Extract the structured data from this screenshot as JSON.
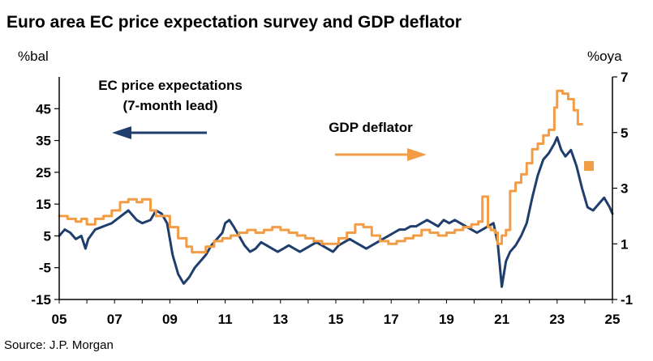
{
  "chart_data": {
    "type": "line",
    "title": "Euro area EC price expectation survey and GDP deflator",
    "left_axis_unit": "%bal",
    "right_axis_unit": "%oya",
    "ylim_left": [
      -15,
      55
    ],
    "ylim_right": [
      -1,
      7
    ],
    "yticks_left": [
      45,
      35,
      25,
      15,
      5,
      -5,
      -15
    ],
    "yticks_right": [
      7,
      5,
      3,
      1,
      -1
    ],
    "xlim": [
      2005,
      2025
    ],
    "xticks": [
      "05",
      "07",
      "09",
      "11",
      "13",
      "15",
      "17",
      "19",
      "21",
      "23",
      "25"
    ],
    "colors": {
      "ec": "#1f3e6e",
      "gdp": "#f39c46"
    },
    "annotations": {
      "ec_label_line1": "EC price expectations",
      "ec_label_line2": "(7-month lead)",
      "gdp_label": "GDP deflator"
    },
    "source": "Source: J.P. Morgan",
    "series": [
      {
        "name": "EC price expectations",
        "axis": "left",
        "x": [
          2005.0,
          2005.2,
          2005.4,
          2005.6,
          2005.8,
          2005.95,
          2006.05,
          2006.3,
          2006.6,
          2006.9,
          2007.2,
          2007.5,
          2007.8,
          2008.0,
          2008.3,
          2008.5,
          2008.7,
          2008.9,
          2009.1,
          2009.3,
          2009.5,
          2009.7,
          2009.9,
          2010.1,
          2010.3,
          2010.5,
          2010.7,
          2010.9,
          2011.0,
          2011.15,
          2011.3,
          2011.5,
          2011.7,
          2011.9,
          2012.1,
          2012.3,
          2012.5,
          2012.7,
          2012.9,
          2013.1,
          2013.3,
          2013.5,
          2013.7,
          2013.9,
          2014.1,
          2014.3,
          2014.5,
          2014.7,
          2014.9,
          2015.1,
          2015.3,
          2015.5,
          2015.7,
          2015.9,
          2016.1,
          2016.3,
          2016.5,
          2016.7,
          2016.9,
          2017.1,
          2017.3,
          2017.5,
          2017.7,
          2017.9,
          2018.1,
          2018.3,
          2018.5,
          2018.7,
          2018.9,
          2019.1,
          2019.3,
          2019.5,
          2019.7,
          2019.9,
          2020.1,
          2020.3,
          2020.5,
          2020.7,
          2020.85,
          2021.0,
          2021.15,
          2021.3,
          2021.5,
          2021.7,
          2021.9,
          2022.1,
          2022.3,
          2022.5,
          2022.7,
          2022.9,
          2023.0,
          2023.15,
          2023.3,
          2023.5,
          2023.7,
          2023.9,
          2024.1,
          2024.3,
          2024.5,
          2024.7,
          2024.9,
          2025.0
        ],
        "values": [
          5,
          7,
          6,
          4,
          5,
          1,
          4,
          7,
          8,
          9,
          11,
          13,
          10,
          9,
          10,
          13,
          12,
          9,
          -1,
          -7,
          -10,
          -8,
          -5,
          -3,
          -1,
          2,
          4,
          6,
          9,
          10,
          8,
          5,
          2,
          0,
          1,
          3,
          2,
          1,
          0,
          1,
          2,
          1,
          0,
          1,
          2,
          3,
          2,
          1,
          0,
          2,
          3,
          4,
          3,
          2,
          1,
          2,
          3,
          4,
          5,
          6,
          7,
          7,
          8,
          8,
          9,
          10,
          9,
          8,
          10,
          9,
          10,
          9,
          8,
          7,
          6,
          7,
          8,
          9,
          3,
          -11,
          -3,
          0,
          2,
          5,
          9,
          17,
          24,
          29,
          31,
          34,
          36,
          32,
          30,
          32,
          27,
          20,
          14,
          13,
          15,
          17,
          14,
          12
        ]
      },
      {
        "name": "GDP deflator",
        "axis": "right",
        "x": [
          2005.0,
          2005.3,
          2005.6,
          2005.8,
          2006.0,
          2006.3,
          2006.6,
          2006.9,
          2007.2,
          2007.5,
          2007.8,
          2008.0,
          2008.3,
          2008.5,
          2008.75,
          2009.0,
          2009.3,
          2009.6,
          2009.8,
          2010.0,
          2010.3,
          2010.6,
          2010.9,
          2011.2,
          2011.5,
          2011.8,
          2012.1,
          2012.4,
          2012.7,
          2013.0,
          2013.3,
          2013.6,
          2013.9,
          2014.2,
          2014.5,
          2014.8,
          2015.1,
          2015.4,
          2015.7,
          2016.0,
          2016.3,
          2016.6,
          2016.9,
          2017.2,
          2017.5,
          2017.8,
          2018.1,
          2018.4,
          2018.7,
          2019.0,
          2019.3,
          2019.6,
          2019.9,
          2020.15,
          2020.3,
          2020.5,
          2020.6,
          2020.75,
          2020.85,
          2021.0,
          2021.15,
          2021.3,
          2021.5,
          2021.7,
          2021.9,
          2022.1,
          2022.3,
          2022.5,
          2022.7,
          2022.9,
          2023.0,
          2023.2,
          2023.4,
          2023.6,
          2023.75,
          2023.9
        ],
        "values": [
          2.0,
          1.9,
          1.8,
          1.9,
          1.7,
          1.9,
          2.0,
          2.2,
          2.5,
          2.6,
          2.5,
          2.6,
          2.2,
          2.0,
          2.0,
          1.6,
          1.2,
          0.9,
          0.7,
          0.7,
          0.9,
          1.1,
          1.2,
          1.3,
          1.4,
          1.5,
          1.4,
          1.5,
          1.6,
          1.5,
          1.4,
          1.3,
          1.2,
          1.1,
          1.0,
          1.0,
          1.2,
          1.4,
          1.7,
          1.6,
          1.3,
          1.1,
          1.0,
          1.1,
          1.2,
          1.3,
          1.5,
          1.4,
          1.3,
          1.4,
          1.5,
          1.6,
          1.7,
          1.8,
          2.7,
          1.6,
          1.5,
          1.4,
          1.0,
          1.3,
          1.5,
          2.9,
          3.2,
          3.5,
          3.9,
          4.4,
          4.6,
          4.9,
          5.1,
          5.9,
          6.5,
          6.4,
          6.2,
          5.8,
          5.3,
          5.3
        ]
      },
      {
        "name": "GDP deflator marker",
        "axis": "right",
        "type": "scatter",
        "x": [
          2024.15
        ],
        "values": [
          3.8
        ]
      }
    ]
  }
}
